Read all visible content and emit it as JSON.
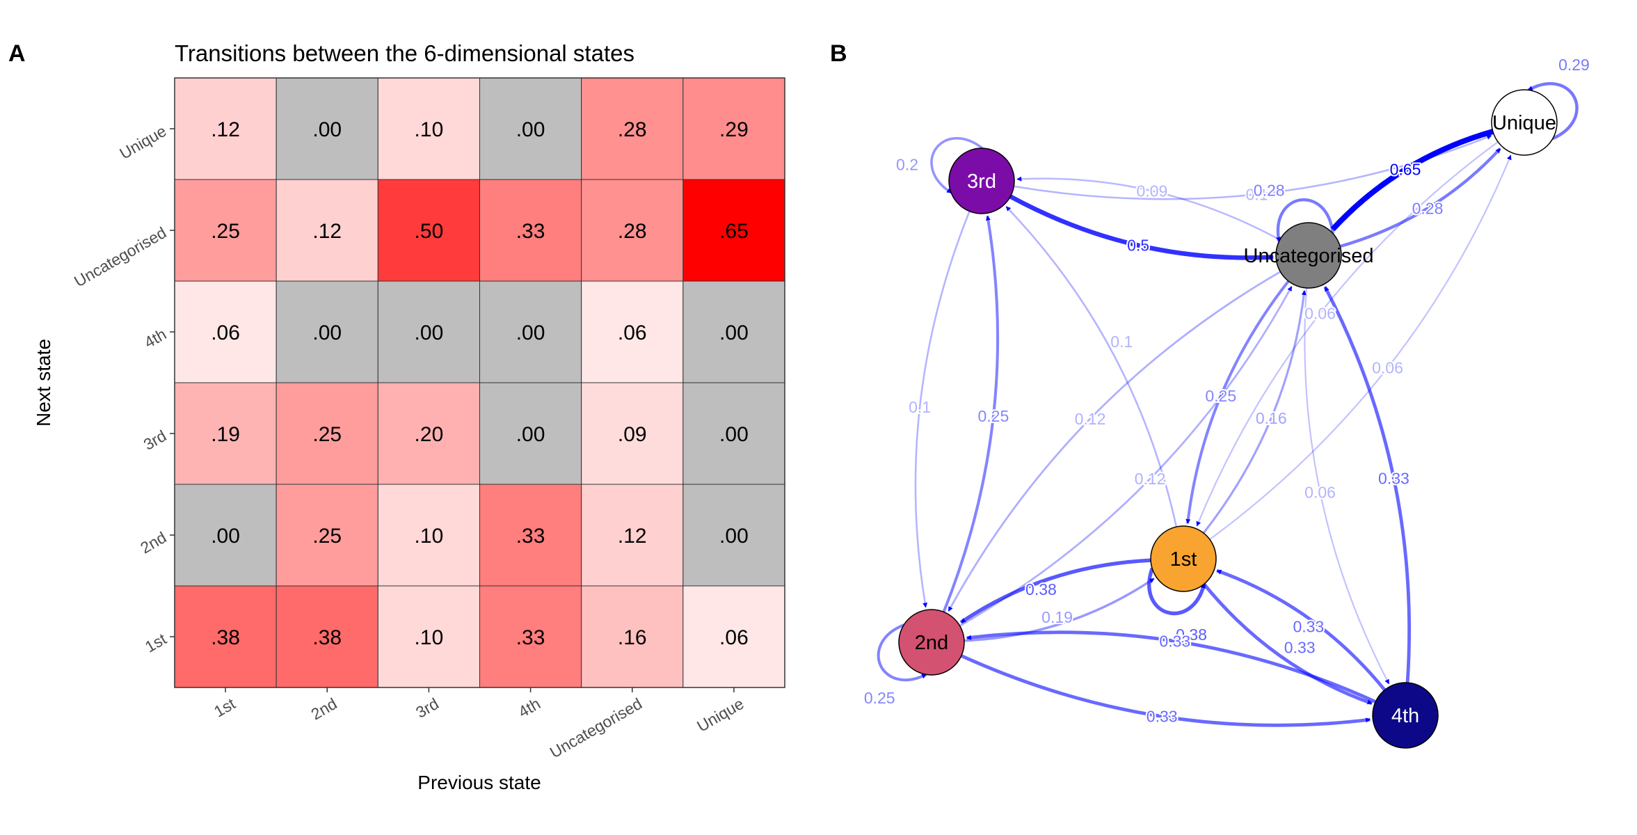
{
  "panels": {
    "a_label": "A",
    "b_label": "B"
  },
  "chart_data": [
    {
      "type": "heatmap",
      "title": "Transitions between the 6-dimensional states",
      "xlabel": "Previous state",
      "ylabel": "Next state",
      "x_categories": [
        "1st",
        "2nd",
        "3rd",
        "4th",
        "Uncategorised",
        "Unique"
      ],
      "y_categories": [
        "Unique",
        "Uncategorised",
        "4th",
        "3rd",
        "2nd",
        "1st"
      ],
      "values": [
        [
          0.12,
          0.0,
          0.1,
          0.0,
          0.28,
          0.29
        ],
        [
          0.25,
          0.12,
          0.5,
          0.33,
          0.28,
          0.65
        ],
        [
          0.06,
          0.0,
          0.0,
          0.0,
          0.06,
          0.0
        ],
        [
          0.19,
          0.25,
          0.2,
          0.0,
          0.09,
          0.0
        ],
        [
          0.0,
          0.25,
          0.1,
          0.33,
          0.12,
          0.0
        ],
        [
          0.38,
          0.38,
          0.1,
          0.33,
          0.16,
          0.06
        ]
      ],
      "cell_labels": [
        [
          ".12",
          ".00",
          ".10",
          ".00",
          ".28",
          ".29"
        ],
        [
          ".25",
          ".12",
          ".50",
          ".33",
          ".28",
          ".65"
        ],
        [
          ".06",
          ".00",
          ".00",
          ".00",
          ".06",
          ".00"
        ],
        [
          ".19",
          ".25",
          ".20",
          ".00",
          ".09",
          ".00"
        ],
        [
          ".00",
          ".25",
          ".10",
          ".33",
          ".12",
          ".00"
        ],
        [
          ".38",
          ".38",
          ".10",
          ".33",
          ".16",
          ".06"
        ]
      ],
      "zero_color": "#bebebe",
      "low_color": "#ffffff",
      "high_color": "#ff0000"
    },
    {
      "type": "network",
      "nodes": [
        {
          "id": "1st",
          "label": "1st",
          "color": "#f9a430",
          "text_color": "#000000"
        },
        {
          "id": "2nd",
          "label": "2nd",
          "color": "#d35171",
          "text_color": "#000000"
        },
        {
          "id": "3rd",
          "label": "3rd",
          "color": "#7b0ca8",
          "text_color": "#ffffff"
        },
        {
          "id": "4th",
          "label": "4th",
          "color": "#0d0887",
          "text_color": "#ffffff"
        },
        {
          "id": "Uncategorised",
          "label": "Uncategorised",
          "color": "#7f7f7f",
          "text_color": "#000000"
        },
        {
          "id": "Unique",
          "label": "Unique",
          "color": "#ffffff",
          "text_color": "#000000"
        }
      ],
      "edges": [
        {
          "from": "1st",
          "to": "1st",
          "value": 0.38,
          "label": "0.38"
        },
        {
          "from": "1st",
          "to": "2nd",
          "value": 0.38,
          "label": "0.38"
        },
        {
          "from": "1st",
          "to": "3rd",
          "value": 0.1,
          "label": "0.1"
        },
        {
          "from": "1st",
          "to": "4th",
          "value": 0.33,
          "label": "0.33"
        },
        {
          "from": "1st",
          "to": "Uncategorised",
          "value": 0.16,
          "label": "0.16"
        },
        {
          "from": "1st",
          "to": "Unique",
          "value": 0.06,
          "label": "0.06"
        },
        {
          "from": "2nd",
          "to": "1st",
          "value": 0.19,
          "label": "0.19"
        },
        {
          "from": "2nd",
          "to": "2nd",
          "value": 0.25,
          "label": "0.25"
        },
        {
          "from": "2nd",
          "to": "3rd",
          "value": 0.25,
          "label": "0.25"
        },
        {
          "from": "2nd",
          "to": "4th",
          "value": 0.33,
          "label": "0.33"
        },
        {
          "from": "2nd",
          "to": "Uncategorised",
          "value": 0.12,
          "label": "0.12"
        },
        {
          "from": "3rd",
          "to": "2nd",
          "value": 0.1,
          "label": "0.1"
        },
        {
          "from": "3rd",
          "to": "3rd",
          "value": 0.2,
          "label": "0.2"
        },
        {
          "from": "3rd",
          "to": "Uncategorised",
          "value": 0.5,
          "label": "0.5"
        },
        {
          "from": "3rd",
          "to": "Unique",
          "value": 0.1,
          "label": "0.1"
        },
        {
          "from": "4th",
          "to": "1st",
          "value": 0.33,
          "label": "0.33"
        },
        {
          "from": "4th",
          "to": "2nd",
          "value": 0.33,
          "label": "0.33"
        },
        {
          "from": "4th",
          "to": "Uncategorised",
          "value": 0.33,
          "label": "0.33"
        },
        {
          "from": "Uncategorised",
          "to": "1st",
          "value": 0.25,
          "label": "0.25"
        },
        {
          "from": "Uncategorised",
          "to": "2nd",
          "value": 0.12,
          "label": "0.12"
        },
        {
          "from": "Uncategorised",
          "to": "3rd",
          "value": 0.09,
          "label": "0.09"
        },
        {
          "from": "Uncategorised",
          "to": "4th",
          "value": 0.06,
          "label": "0.06"
        },
        {
          "from": "Uncategorised",
          "to": "Uncategorised",
          "value": 0.28,
          "label": "0.28"
        },
        {
          "from": "Uncategorised",
          "to": "Unique",
          "value": 0.28,
          "label": "0.28"
        },
        {
          "from": "Unique",
          "to": "1st",
          "value": 0.06,
          "label": "0.06"
        },
        {
          "from": "Unique",
          "to": "Uncategorised",
          "value": 0.65,
          "label": "0.65"
        },
        {
          "from": "Unique",
          "to": "Unique",
          "value": 0.29,
          "label": "0.29"
        }
      ],
      "edge_color": "#0000ff"
    }
  ]
}
